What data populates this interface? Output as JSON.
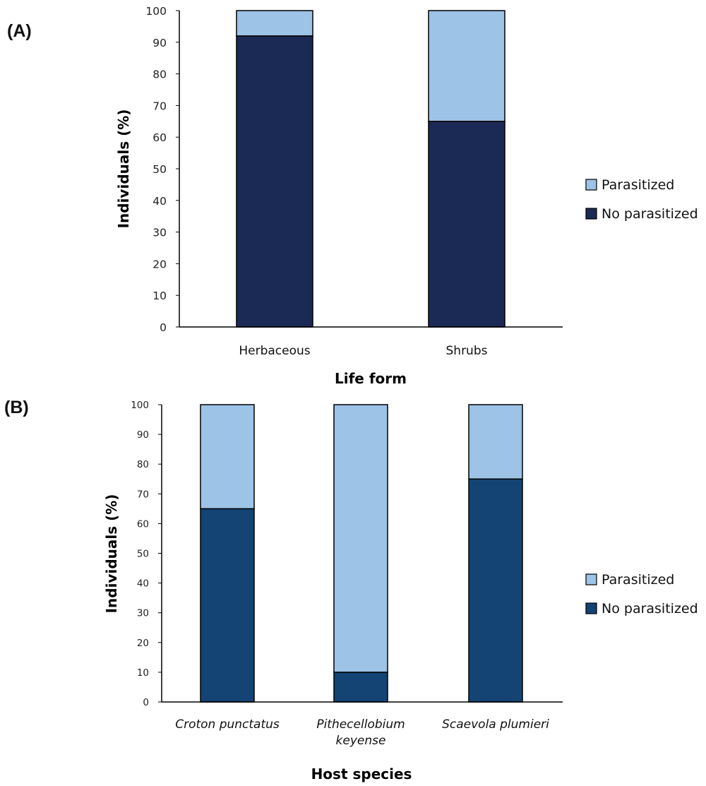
{
  "colors": {
    "parasitized": "#9dc3e6",
    "no_parasitized_a": "#1b2a55",
    "no_parasitized_b": "#134474",
    "axis": "#000000",
    "bar_stroke": "#000000"
  },
  "chart_data": [
    {
      "type": "bar",
      "stacked": true,
      "panel_label": "(A)",
      "title": "",
      "xlabel": "Life form",
      "ylabel": "Individuals (%)",
      "ylim": [
        0,
        100
      ],
      "yticks": [
        0,
        10,
        20,
        30,
        40,
        50,
        60,
        70,
        80,
        90,
        100
      ],
      "categories": [
        [
          "Herbaceous"
        ],
        [
          "Shrubs"
        ]
      ],
      "category_style": "normal",
      "series": [
        {
          "name": "No parasitized",
          "values": [
            92,
            65
          ]
        },
        {
          "name": "Parasitized",
          "values": [
            8,
            35
          ]
        }
      ],
      "legend": {
        "placement": "right",
        "order": [
          "Parasitized",
          "No parasitized"
        ]
      }
    },
    {
      "type": "bar",
      "stacked": true,
      "panel_label": "(B)",
      "title": "",
      "xlabel": "Host species",
      "ylabel": "Individuals (%)",
      "ylim": [
        0,
        100
      ],
      "yticks": [
        0,
        10,
        20,
        30,
        40,
        50,
        60,
        70,
        80,
        90,
        100
      ],
      "categories": [
        [
          "Croton punctatus"
        ],
        [
          "Pithecellobium",
          "keyense"
        ],
        [
          "Scaevola plumieri"
        ]
      ],
      "category_style": "italic",
      "series": [
        {
          "name": "No parasitized",
          "values": [
            65,
            10,
            75
          ]
        },
        {
          "name": "Parasitized",
          "values": [
            35,
            90,
            25
          ]
        }
      ],
      "legend": {
        "placement": "right",
        "order": [
          "Parasitized",
          "No parasitized"
        ]
      }
    }
  ]
}
